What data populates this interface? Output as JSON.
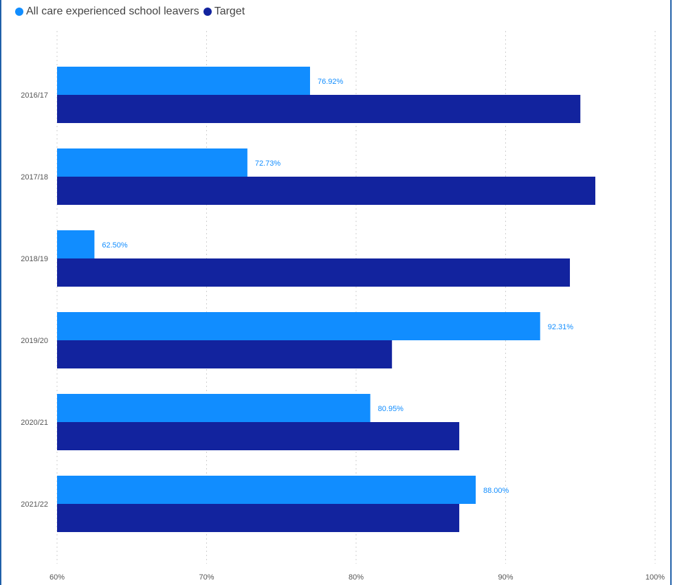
{
  "chart_data": {
    "type": "bar",
    "orientation": "horizontal",
    "categories": [
      "2016/17",
      "2017/18",
      "2018/19",
      "2019/20",
      "2020/21",
      "2021/22"
    ],
    "series": [
      {
        "name": "All care experienced school leavers",
        "color": "#118dff",
        "values": [
          76.92,
          72.73,
          62.5,
          92.31,
          80.95,
          88.0
        ],
        "labels": [
          "76.92%",
          "72.73%",
          "62.50%",
          "92.31%",
          "80.95%",
          "88.00%"
        ]
      },
      {
        "name": "Target",
        "color": "#12239e",
        "values": [
          95.0,
          96.0,
          94.3,
          82.4,
          86.9,
          86.9
        ]
      }
    ],
    "xlim": [
      60,
      100
    ],
    "xticks": [
      60,
      70,
      80,
      90,
      100
    ],
    "xtick_labels": [
      "60%",
      "70%",
      "80%",
      "90%",
      "100%"
    ],
    "grid": true,
    "legend_position": "top-left",
    "data_label_color": "#118dff"
  }
}
